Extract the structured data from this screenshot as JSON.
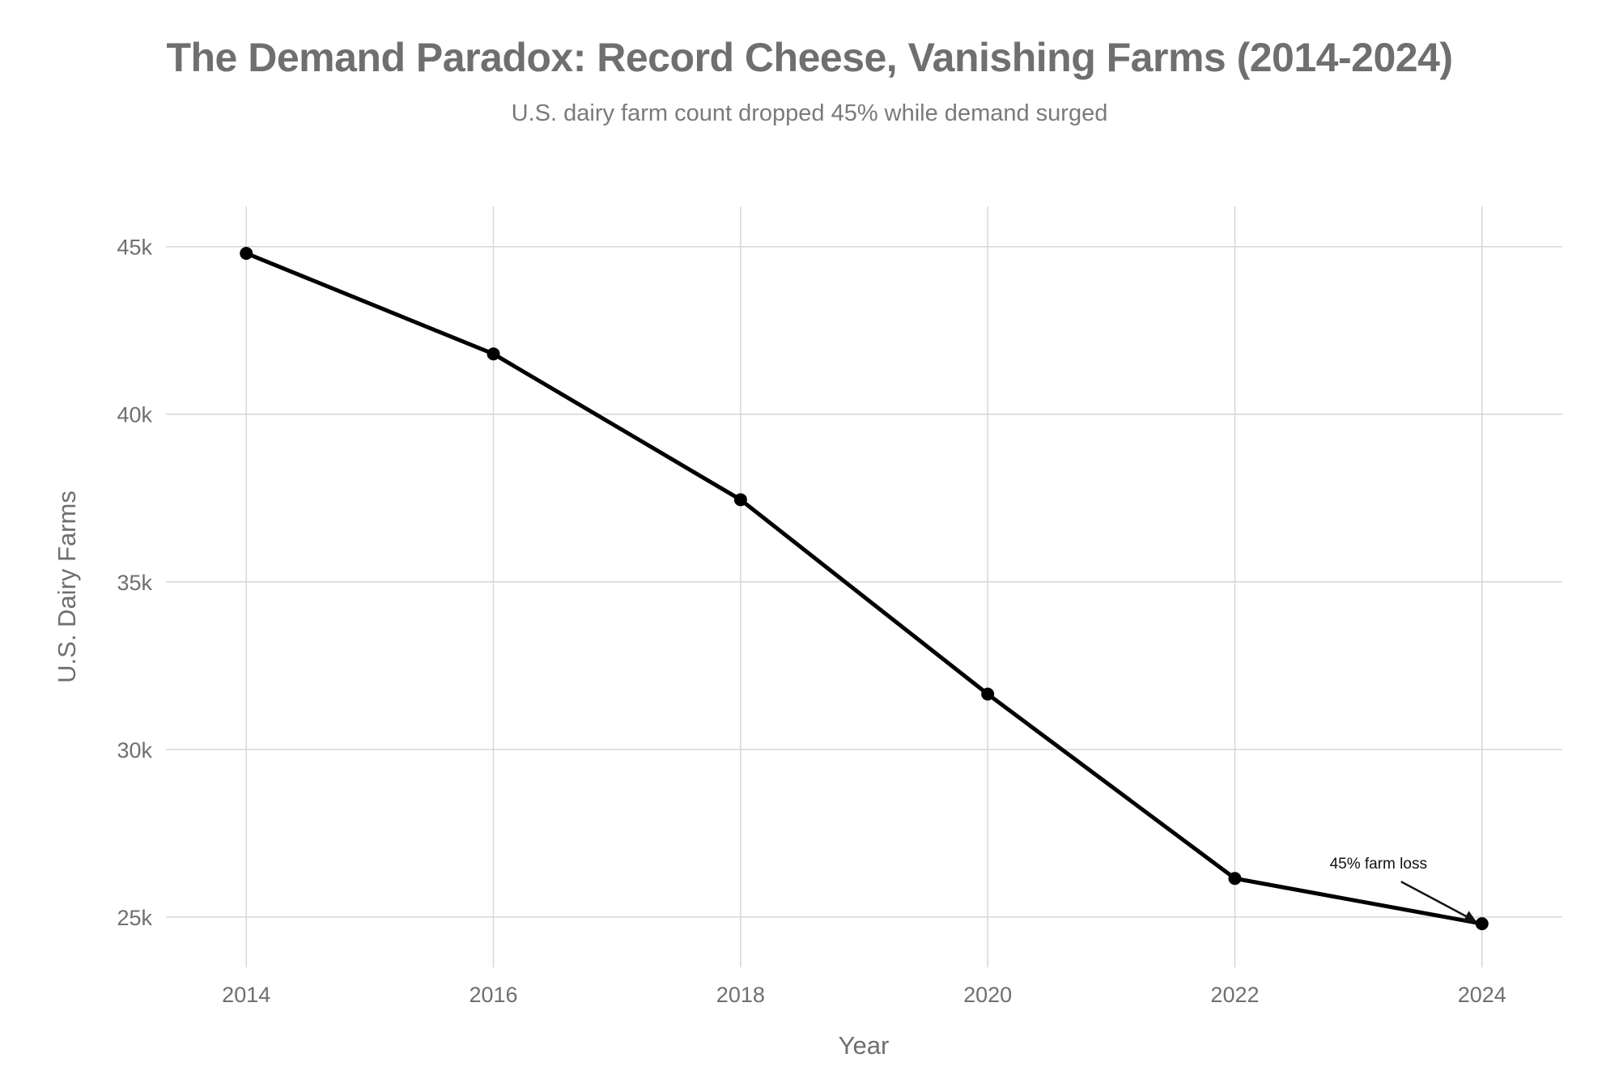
{
  "chart_data": {
    "type": "line",
    "title": "The Demand Paradox: Record Cheese, Vanishing Farms (2014-2024)",
    "subtitle": "U.S. dairy farm count dropped 45% while demand surged",
    "xlabel": "Year",
    "ylabel": "U.S. Dairy Farms",
    "x": [
      2014,
      2016,
      2018,
      2020,
      2022,
      2024
    ],
    "x_tick_labels": [
      "2014",
      "2016",
      "2018",
      "2020",
      "2022",
      "2024"
    ],
    "y_ticks": [
      25000,
      30000,
      35000,
      40000,
      45000
    ],
    "y_tick_labels": [
      "25k",
      "30k",
      "35k",
      "40k",
      "45k"
    ],
    "xlim": [
      2013.35,
      2024.65
    ],
    "ylim": [
      23500,
      46200
    ],
    "grid": true,
    "series": [
      {
        "values": [
          44800,
          41800,
          37450,
          31650,
          26150,
          24800
        ],
        "color": "#000000"
      }
    ],
    "annotations": [
      {
        "text": "45% farm loss",
        "x": 2024,
        "y": 24800
      }
    ]
  }
}
